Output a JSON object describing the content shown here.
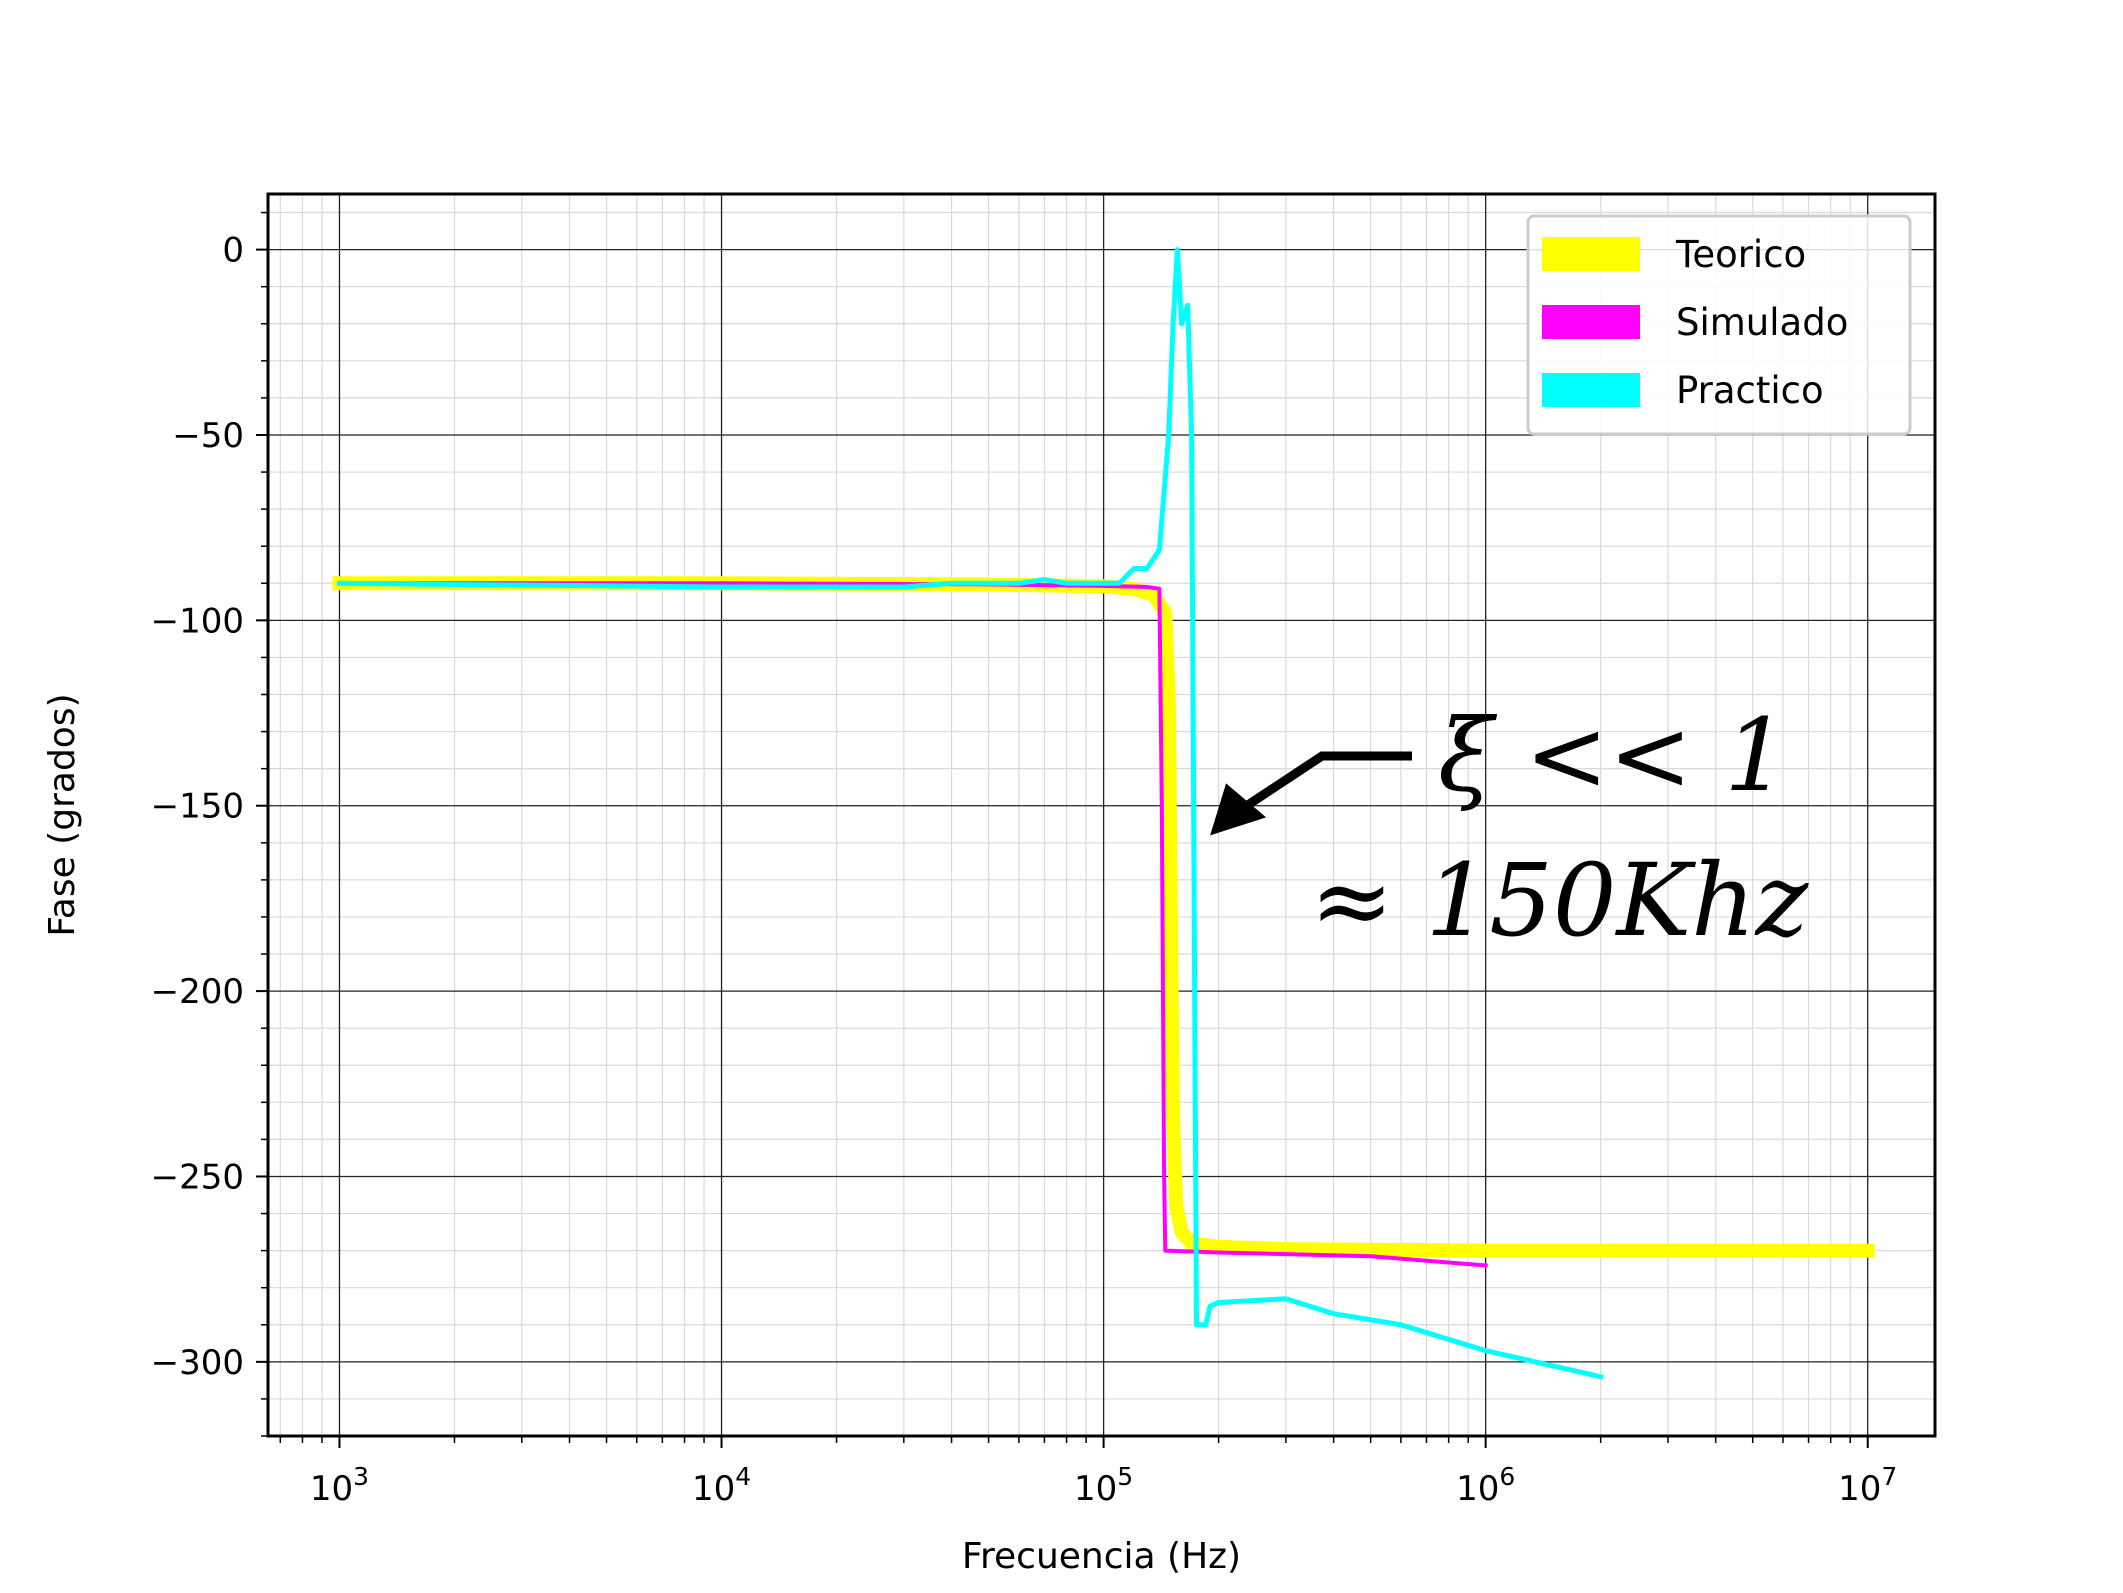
{
  "chart_data": {
    "type": "line",
    "xlabel": "Frecuencia (Hz)",
    "ylabel": "Fase (grados)",
    "xscale": "log",
    "xlim": [
      650,
      15000000
    ],
    "ylim": [
      -320,
      15
    ],
    "grid": true,
    "legend_position": "top-right",
    "x_ticks": [
      {
        "value": 1000,
        "base": "10",
        "exp": "3"
      },
      {
        "value": 10000,
        "base": "10",
        "exp": "4"
      },
      {
        "value": 100000,
        "base": "10",
        "exp": "5"
      },
      {
        "value": 1000000,
        "base": "10",
        "exp": "6"
      },
      {
        "value": 10000000,
        "base": "10",
        "exp": "7"
      }
    ],
    "y_ticks": [
      {
        "value": 0,
        "label": "0"
      },
      {
        "value": -50,
        "label": "−50"
      },
      {
        "value": -100,
        "label": "−100"
      },
      {
        "value": -150,
        "label": "−150"
      },
      {
        "value": -200,
        "label": "−200"
      },
      {
        "value": -250,
        "label": "−250"
      },
      {
        "value": -300,
        "label": "−300"
      }
    ],
    "series": [
      {
        "name": "Teorico",
        "color": "#ffff00",
        "width": 14,
        "x": [
          1000,
          10000,
          50000,
          100000,
          120000,
          135000,
          145000,
          148000,
          150000,
          152000,
          155000,
          160000,
          170000,
          200000,
          300000,
          1000000,
          10000000
        ],
        "y": [
          -90,
          -90,
          -90.3,
          -90.8,
          -91.6,
          -93,
          -98,
          -120,
          -180,
          -235,
          -258,
          -265,
          -268,
          -269,
          -269.6,
          -270,
          -270
        ]
      },
      {
        "name": "Simulado",
        "color": "#ff00ff",
        "width": 4,
        "x": [
          1000,
          10000,
          50000,
          100000,
          130000,
          140000,
          142000,
          144000,
          145000,
          200000,
          500000,
          1000000
        ],
        "y": [
          -90,
          -90,
          -90.3,
          -90.7,
          -91,
          -91.5,
          -150,
          -250,
          -270,
          -270.5,
          -271.5,
          -274
        ]
      },
      {
        "name": "Practico",
        "color": "#00ffff",
        "width": 5,
        "x": [
          1000,
          10000,
          30000,
          40000,
          60000,
          70000,
          80000,
          100000,
          110000,
          120000,
          130000,
          140000,
          148000,
          152000,
          156000,
          160000,
          166000,
          170000,
          175000,
          180000,
          185000,
          190000,
          200000,
          300000,
          400000,
          600000,
          1000000,
          2000000
        ],
        "y": [
          -90,
          -91,
          -91,
          -90,
          -90,
          -89,
          -90,
          -90,
          -90,
          -86,
          -86,
          -81,
          -50,
          -20,
          0,
          -20,
          -15,
          -50,
          -290,
          -290,
          -290,
          -285,
          -284,
          -283,
          -287,
          -290,
          -297,
          -304
        ]
      }
    ],
    "annotations": [
      {
        "line1": "ξ << 1",
        "line2": "≈ 150Khz",
        "arrow_to": {
          "x": 190000,
          "y": -158
        }
      }
    ]
  }
}
